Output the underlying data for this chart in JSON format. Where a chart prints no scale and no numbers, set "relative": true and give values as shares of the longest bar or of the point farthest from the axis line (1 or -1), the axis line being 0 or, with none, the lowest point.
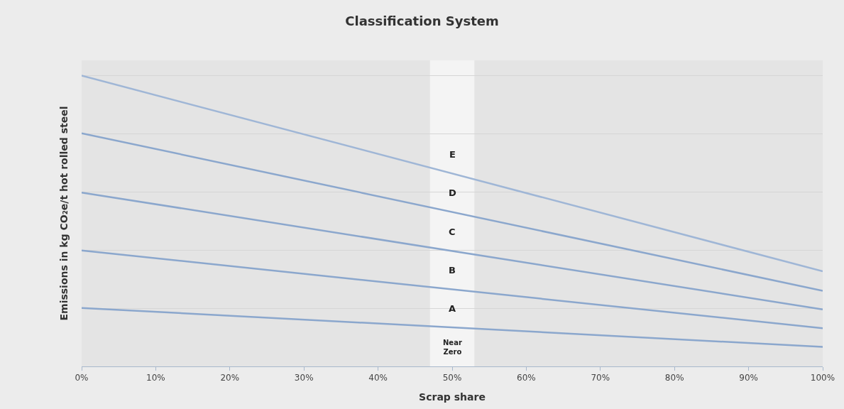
{
  "chart_data": {
    "type": "line",
    "title": "Classification System",
    "xlabel": "Scrap share",
    "ylabel": "Emissions in kg CO₂e/t hot rolled steel",
    "relative": true,
    "x": [
      0,
      100
    ],
    "xlim": [
      0,
      100
    ],
    "xticks": [
      {
        "value": 0,
        "label": "0%"
      },
      {
        "value": 10,
        "label": "10%"
      },
      {
        "value": 20,
        "label": "20%"
      },
      {
        "value": 30,
        "label": "30%"
      },
      {
        "value": 40,
        "label": "40%"
      },
      {
        "value": 50,
        "label": "50%"
      },
      {
        "value": 60,
        "label": "60%"
      },
      {
        "value": 70,
        "label": "70%"
      },
      {
        "value": 80,
        "label": "80%"
      },
      {
        "value": 90,
        "label": "90%"
      },
      {
        "value": 100,
        "label": "100%"
      }
    ],
    "series": [
      {
        "color": "#9fb6d6",
        "values": [
          1,
          0.327
        ]
      },
      {
        "color": "#8ba7cd",
        "values": [
          0.802,
          0.26
        ]
      },
      {
        "color": "#8ba7cd",
        "values": [
          0.598,
          0.196
        ]
      },
      {
        "color": "#8ba7cd",
        "values": [
          0.399,
          0.131
        ]
      },
      {
        "color": "#8ba7cd",
        "values": [
          0.201,
          0.067
        ]
      }
    ],
    "bands": [
      {
        "axis": "x",
        "from": 47,
        "to": 53,
        "color": "#ffffff"
      }
    ],
    "annotations": [
      "E",
      "D",
      "C",
      "B",
      "A",
      "Near\nZero"
    ],
    "grid": "y",
    "marker": "none",
    "line_style": "solid"
  }
}
